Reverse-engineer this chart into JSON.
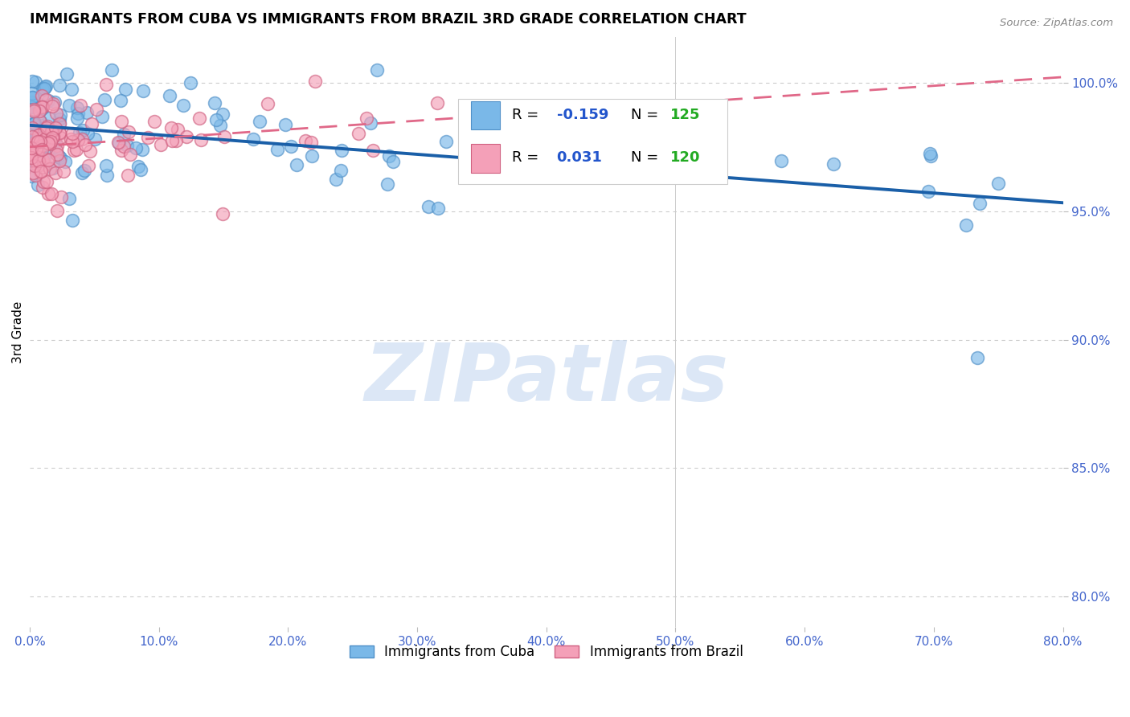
{
  "title": "IMMIGRANTS FROM CUBA VS IMMIGRANTS FROM BRAZIL 3RD GRADE CORRELATION CHART",
  "source": "Source: ZipAtlas.com",
  "ylabel": "3rd Grade",
  "ytick_values": [
    0.8,
    0.85,
    0.9,
    0.95,
    1.0
  ],
  "xlim": [
    0.0,
    0.8
  ],
  "ylim": [
    0.788,
    1.018
  ],
  "cuba_R": -0.159,
  "cuba_N": 125,
  "brazil_R": 0.031,
  "brazil_N": 120,
  "cuba_marker_color": "#7ab8e8",
  "cuba_marker_edge": "#5090c8",
  "cuba_line_color": "#1a5fa8",
  "brazil_marker_color": "#f4a0b8",
  "brazil_marker_edge": "#d06080",
  "brazil_line_color": "#e06888",
  "watermark_text": "ZIPatlas",
  "watermark_color": "#c5d8f0",
  "legend_R_color": "#2255cc",
  "legend_N_color": "#22aa22",
  "background_color": "#ffffff",
  "grid_color": "#cccccc",
  "title_fontsize": 12.5,
  "axis_tick_color": "#4466cc",
  "source_color": "#888888"
}
